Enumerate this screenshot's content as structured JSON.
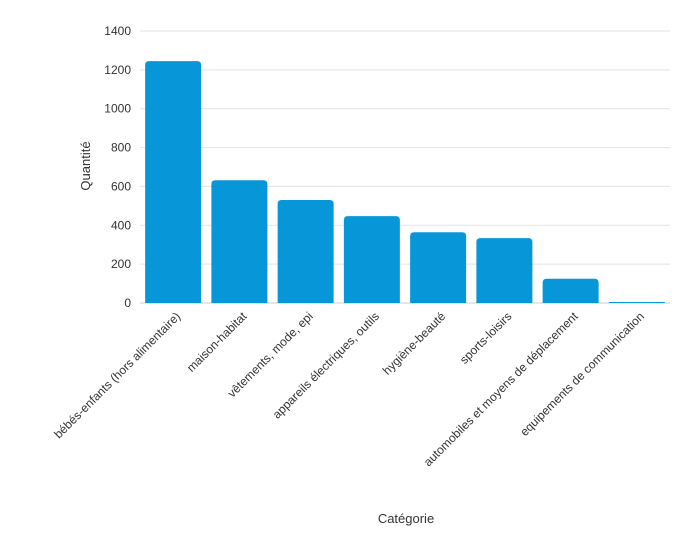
{
  "chart_data": {
    "type": "bar",
    "xlabel": "Catégorie",
    "ylabel": "Quantité",
    "ylim": [
      0,
      1400
    ],
    "yticks": [
      0,
      200,
      400,
      600,
      800,
      1000,
      1200,
      1400
    ],
    "grid": true,
    "legend": "none",
    "bar_color": "#0797d9",
    "categories": [
      "bébés-enfants (hors alimentaire)",
      "maison-habitat",
      "vêtements, mode, epi",
      "appareils électriques, outils",
      "hygiène-beauté",
      "sports-loisirs",
      "automobiles et moyens de déplacement",
      "equipements de communication"
    ],
    "values": [
      1245,
      632,
      530,
      447,
      364,
      334,
      125,
      3
    ]
  }
}
